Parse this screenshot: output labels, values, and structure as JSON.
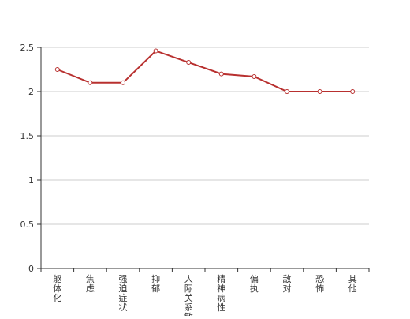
{
  "chart_data": {
    "type": "line",
    "title": "",
    "xlabel": "",
    "ylabel": "",
    "categories": [
      "躯体化",
      "焦虑",
      "强迫症状",
      "抑郁",
      "人际关系敏感",
      "精神病性",
      "偏执",
      "敌对",
      "恐怖",
      "其他"
    ],
    "series": [
      {
        "values": [
          2.25,
          2.1,
          2.1,
          2.46,
          2.33,
          2.2,
          2.17,
          2.0,
          2.0,
          2.0
        ]
      }
    ],
    "ylim": [
      0,
      2.5
    ],
    "yticks": [
      "0",
      "0.5",
      "1",
      "1.5",
      "2",
      "2.5"
    ],
    "grid": true,
    "line_color": "#b8302f"
  }
}
